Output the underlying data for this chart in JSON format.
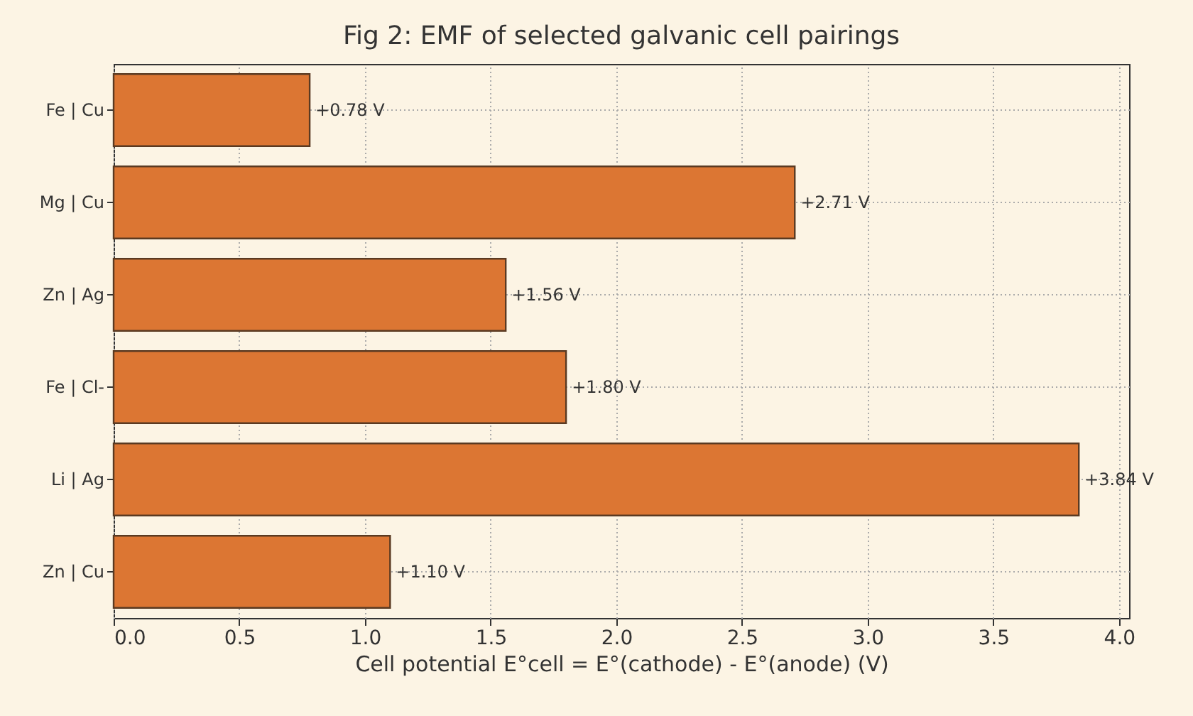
{
  "chart_data": {
    "type": "bar",
    "orientation": "horizontal",
    "title": "Fig 2: EMF of selected galvanic cell pairings",
    "xlabel": "Cell potential  E°cell = E°(cathode) - E°(anode)  (V)",
    "categories": [
      "Fe | Cu",
      "Mg | Cu",
      "Zn | Ag",
      "Fe | Cl-",
      "Li | Ag",
      "Zn | Cu"
    ],
    "values": [
      0.78,
      2.71,
      1.56,
      1.8,
      3.84,
      1.1
    ],
    "value_labels": [
      "+0.78 V",
      "+2.71 V",
      "+1.56 V",
      "+1.80 V",
      "+3.84 V",
      "+1.10 V"
    ],
    "color": "#dc7633",
    "xlim": [
      0,
      4.04
    ],
    "xticks": [
      {
        "value": 0,
        "label": "0.0"
      },
      {
        "value": 0.5,
        "label": "0.5"
      },
      {
        "value": 1,
        "label": "1.0"
      },
      {
        "value": 1.5,
        "label": "1.5"
      },
      {
        "value": 2,
        "label": "2.0"
      },
      {
        "value": 2.5,
        "label": "2.5"
      },
      {
        "value": 3,
        "label": "3.0"
      },
      {
        "value": 3.5,
        "label": "3.5"
      },
      {
        "value": 4,
        "label": "4.0"
      }
    ],
    "grid": true
  }
}
